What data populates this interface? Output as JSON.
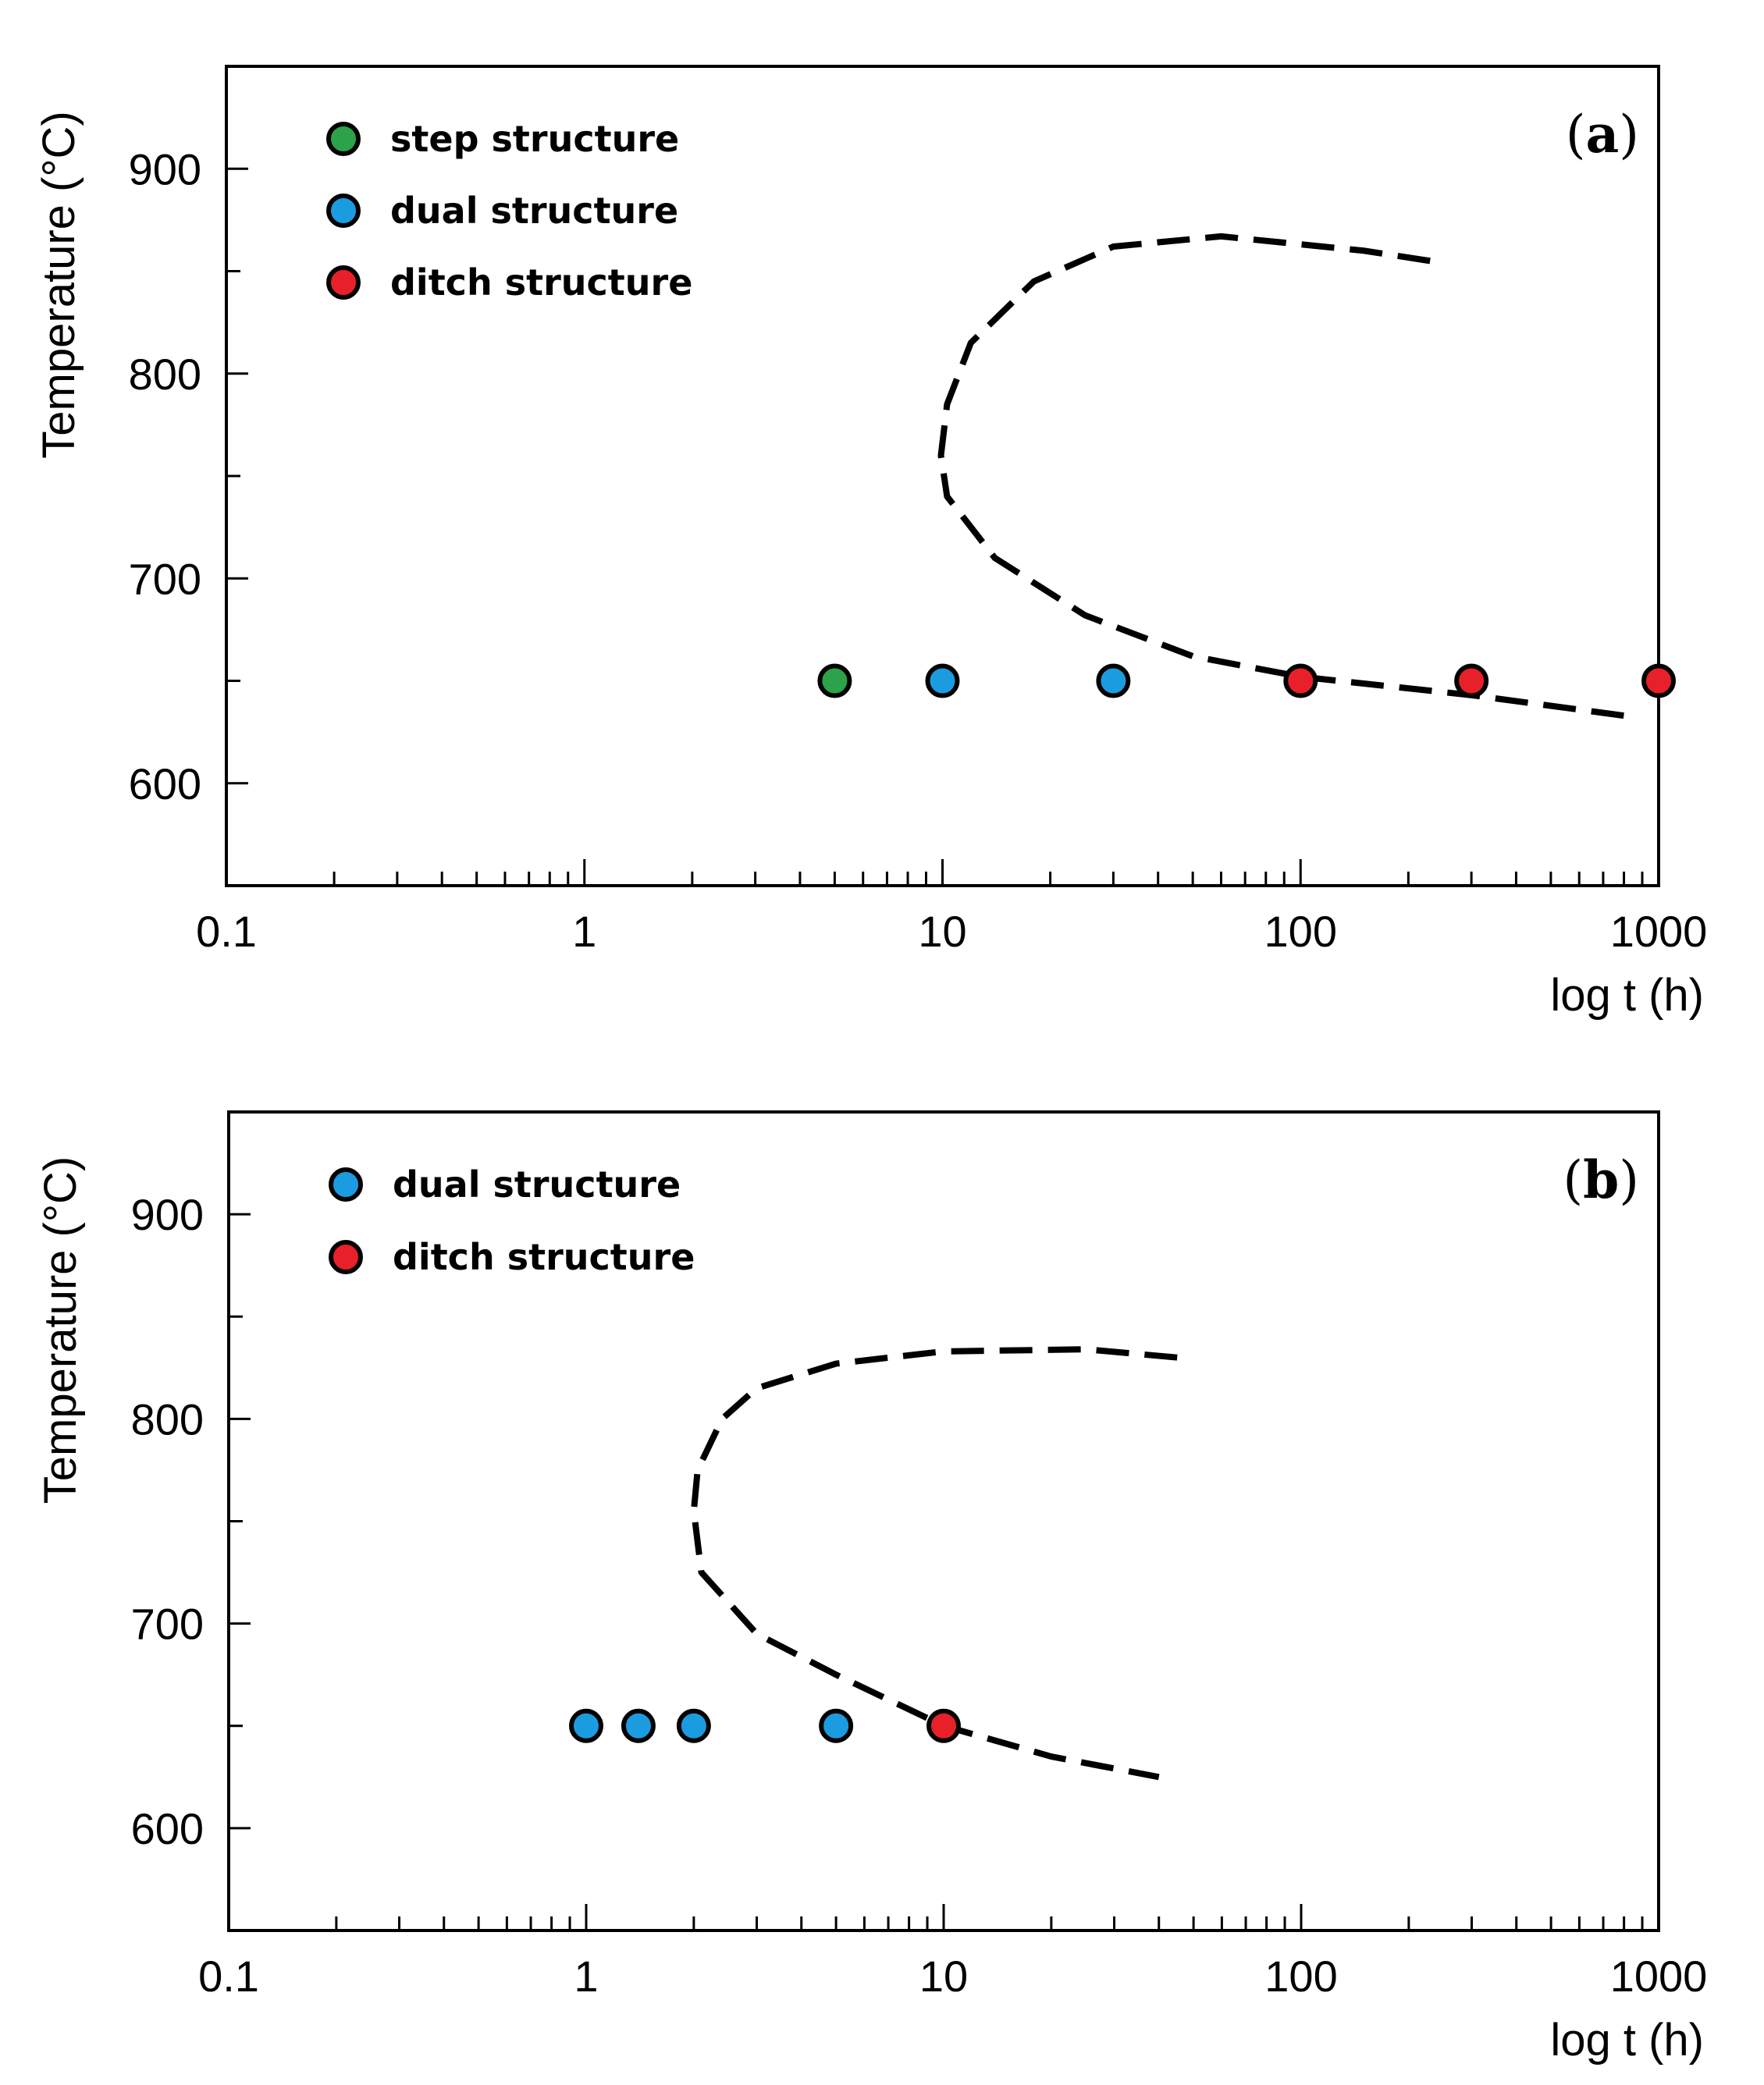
{
  "chart_data": [
    {
      "type": "scatter",
      "panel_label": {
        "open": "(",
        "letter": "a",
        "close": ")"
      },
      "xscale": "log",
      "xlim": [
        0.1,
        1000
      ],
      "ylim": [
        550,
        950
      ],
      "xlabel": "log t (h)",
      "ylabel": "Temperature (°C)",
      "x_tick_labels": [
        "0.1",
        "1",
        "10",
        "100",
        "1000"
      ],
      "y_tick_labels": [
        "600",
        "700",
        "800",
        "900"
      ],
      "legend": [
        {
          "label": "step structure",
          "color": "#2ca24a"
        },
        {
          "label": "dual structure",
          "color": "#1b9be0"
        },
        {
          "label": "ditch structure",
          "color": "#e8202a"
        }
      ],
      "series": [
        {
          "name": "step structure",
          "color": "#2ca24a",
          "points": [
            [
              5,
              650
            ]
          ]
        },
        {
          "name": "dual structure",
          "color": "#1b9be0",
          "points": [
            [
              10,
              650
            ],
            [
              30,
              650
            ]
          ]
        },
        {
          "name": "ditch structure",
          "color": "#e8202a",
          "points": [
            [
              100,
              650
            ],
            [
              300,
              650
            ],
            [
              1000,
              650
            ]
          ]
        }
      ],
      "boundary_curve": [
        [
          230,
          855
        ],
        [
          150,
          860
        ],
        [
          60,
          867
        ],
        [
          30,
          862
        ],
        [
          18,
          845
        ],
        [
          12,
          815
        ],
        [
          10.3,
          785
        ],
        [
          9.9,
          760
        ],
        [
          10.3,
          740
        ],
        [
          14,
          710
        ],
        [
          25,
          682
        ],
        [
          50,
          662
        ],
        [
          100,
          652
        ],
        [
          300,
          643
        ],
        [
          800,
          633
        ]
      ]
    },
    {
      "type": "scatter",
      "panel_label": {
        "open": "(",
        "letter": "b",
        "close": ")"
      },
      "xscale": "log",
      "xlim": [
        0.1,
        1000
      ],
      "ylim": [
        550,
        950
      ],
      "xlabel": "log t (h)",
      "ylabel": "Temperature (°C)",
      "x_tick_labels": [
        "0.1",
        "1",
        "10",
        "100",
        "1000"
      ],
      "y_tick_labels": [
        "600",
        "700",
        "800",
        "900"
      ],
      "legend": [
        {
          "label": "dual structure",
          "color": "#1b9be0"
        },
        {
          "label": "ditch structure",
          "color": "#e8202a"
        }
      ],
      "series": [
        {
          "name": "dual structure",
          "color": "#1b9be0",
          "points": [
            [
              1,
              650
            ],
            [
              1.4,
              650
            ],
            [
              2,
              650
            ],
            [
              5,
              650
            ]
          ]
        },
        {
          "name": "ditch structure",
          "color": "#e8202a",
          "points": [
            [
              10,
              650
            ]
          ]
        }
      ],
      "boundary_curve": [
        [
          45,
          830
        ],
        [
          25,
          834
        ],
        [
          10,
          833
        ],
        [
          5,
          827
        ],
        [
          3,
          815
        ],
        [
          2.4,
          800
        ],
        [
          2.05,
          775
        ],
        [
          2.0,
          755
        ],
        [
          2.1,
          725
        ],
        [
          3,
          695
        ],
        [
          5,
          675
        ],
        [
          10,
          650
        ],
        [
          20,
          635
        ],
        [
          40,
          625
        ]
      ]
    }
  ]
}
